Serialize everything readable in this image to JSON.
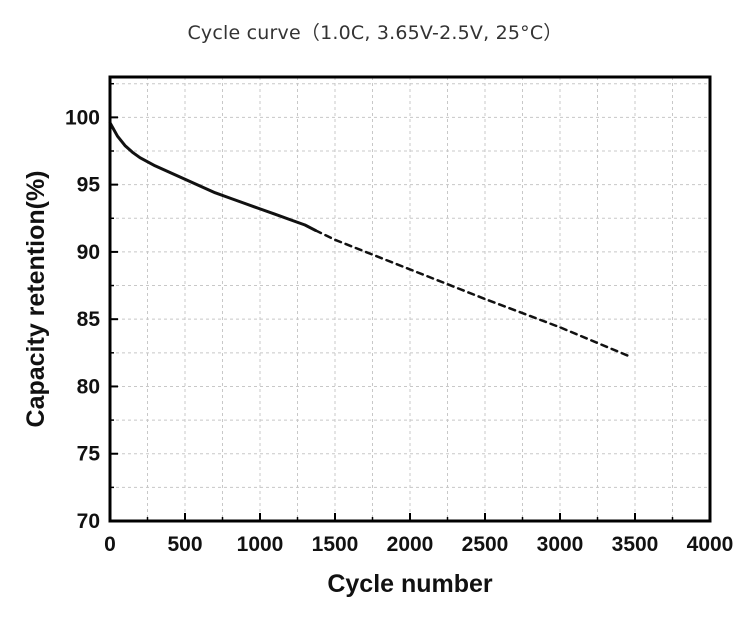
{
  "chart_data": {
    "type": "line",
    "title": "Cycle curve（1.0C, 3.65V-2.5V, 25°C）",
    "xlabel": "Cycle number",
    "ylabel": "Capacity retention(%)",
    "xlim": [
      0,
      4000
    ],
    "ylim": [
      70,
      103
    ],
    "xticks": [
      0,
      500,
      1000,
      1500,
      2000,
      2500,
      3000,
      3500,
      4000
    ],
    "yticks": [
      70,
      75,
      80,
      85,
      90,
      95,
      100
    ],
    "grid": true,
    "series": [
      {
        "style": "solid",
        "color": "#111111",
        "x": [
          0,
          20,
          50,
          100,
          150,
          200,
          300,
          400,
          500,
          600,
          700,
          800,
          900,
          1000,
          1100,
          1200,
          1300,
          1370
        ],
        "y": [
          99.6,
          99.2,
          98.6,
          97.9,
          97.4,
          97.0,
          96.4,
          95.9,
          95.4,
          94.9,
          94.4,
          94.0,
          93.6,
          93.2,
          92.8,
          92.4,
          92.0,
          91.6
        ]
      },
      {
        "style": "dashed",
        "color": "#111111",
        "x": [
          1370,
          1500,
          2000,
          2500,
          3000,
          3450
        ],
        "y": [
          91.6,
          90.9,
          88.7,
          86.5,
          84.4,
          82.3
        ]
      }
    ]
  }
}
